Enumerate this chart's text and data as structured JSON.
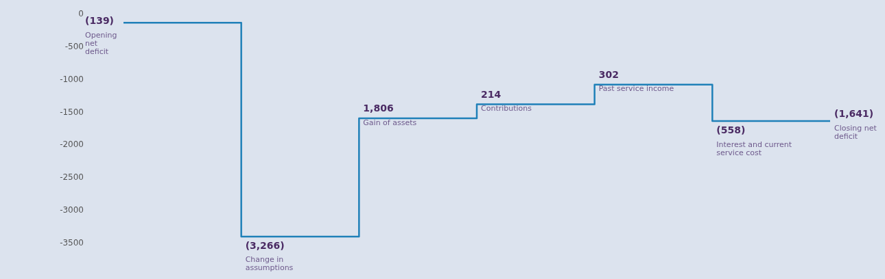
{
  "chart_data": {
    "type": "step",
    "categories": [
      null,
      null,
      null,
      null,
      null,
      null,
      null
    ],
    "values": [
      -139,
      -3405,
      -1599,
      -1385,
      -1083,
      -1641,
      -1641
    ],
    "annotations": [
      "(139)",
      "Opening net deficit",
      "(3,266)",
      "Change in assumptions",
      "1,806",
      "Gain of assets",
      "214",
      "Contributions",
      "302",
      "Past service income",
      "(558)",
      "Interest and current service cost",
      "(1,641)",
      "Closing net deficit"
    ],
    "color": "#1f80b8",
    "ylim": [
      -3500,
      0
    ],
    "yticks": [
      0,
      -500,
      -1000,
      -1500,
      -2000,
      -2500,
      -3000,
      -3500
    ],
    "grid": false,
    "marker": "none",
    "line_style": "solid",
    "tick_labels": "y"
  }
}
